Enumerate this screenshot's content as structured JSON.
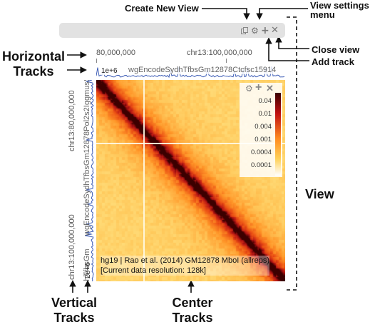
{
  "annotations": {
    "create_new_view": "Create New View",
    "view_settings_line1": "View settings",
    "view_settings_line2": "menu",
    "close_view": "Close view",
    "add_track": "Add track",
    "horizontal_line1": "Horizontal",
    "horizontal_line2": "Tracks",
    "view": "View",
    "vertical_line1": "Vertical",
    "vertical_line2": "Tracks",
    "center_line1": "Center",
    "center_line2": "Tracks"
  },
  "header": {
    "icons": [
      "copy-icon",
      "gear-icon",
      "plus-icon",
      "close-icon"
    ]
  },
  "top_axis": {
    "tick_left": "80,000,000",
    "tick_right": "chr13:100,000,000"
  },
  "left_axis": {
    "tick_top": "chr13:80,000,000",
    "tick_bottom": "chr13:100,000,000"
  },
  "horizontal_track": {
    "max_label": "1e+6",
    "name": "wgEncodeSydhTfbsGm12878Ctcfsc15914"
  },
  "vertical_track": {
    "max_label": "2e+6",
    "name_top": "wgEncodeSydhTfbsGm12878Pol2s2IggmusS",
    "name_bottom": "wgEncodeSydhTfbsGm"
  },
  "heatmap": {
    "info_line1": "hg19 | Rao et al. (2014) GM12878 MboI (allreps)",
    "info_line2": "[Current data resolution: 128k]"
  },
  "legend": {
    "labels": [
      "0.04",
      "0.01",
      "0.004",
      "0.001",
      "0.0004",
      "0.0001"
    ],
    "icons": [
      "gear-icon",
      "plus-icon",
      "close-icon"
    ]
  },
  "colors": {
    "heat_low": "#ffe46e",
    "heat_mid": "#ff8a1e",
    "heat_high": "#c01010",
    "heat_max": "#3a0000",
    "track_line": "#3b5bb5",
    "header_bg": "#e2e2e2"
  }
}
